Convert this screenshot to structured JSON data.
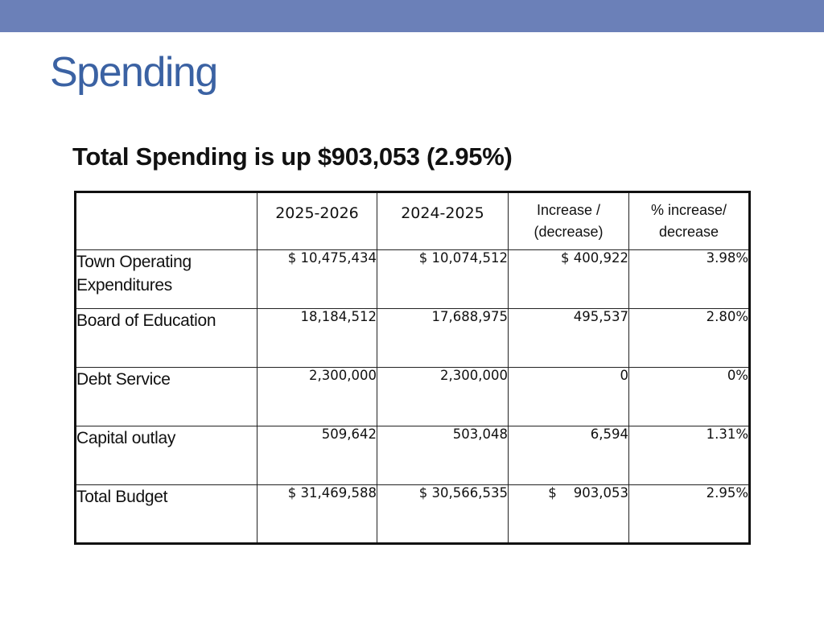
{
  "slide": {
    "title": "Spending",
    "subtitle": "Total Spending is up $903,053 (2.95%)",
    "accent_color": "#6b80b8",
    "title_color": "#3b62a3"
  },
  "table": {
    "headers": {
      "label": "",
      "year1": "2025-2026",
      "year2": "2024-2025",
      "increase_line1": "Increase /",
      "increase_line2": "(decrease)",
      "pct_line1": "% increase/",
      "pct_line2": "decrease"
    },
    "rows": [
      {
        "label_line1": "Town Operating",
        "label_line2": "Expenditures",
        "year1": "$ 10,475,434",
        "year2": "$ 10,074,512",
        "increase": "$ 400,922",
        "pct": "3.98%"
      },
      {
        "label_line1": "Board of Education",
        "label_line2": "",
        "year1": "18,184,512",
        "year2": "17,688,975",
        "increase": "495,537",
        "pct": "2.80%"
      },
      {
        "label_line1": "Debt Service",
        "label_line2": "",
        "year1": "2,300,000",
        "year2": "2,300,000",
        "increase": "0",
        "pct": "0%"
      },
      {
        "label_line1": "Capital outlay",
        "label_line2": "",
        "year1": "509,642",
        "year2": "503,048",
        "increase": "6,594",
        "pct": "1.31%"
      },
      {
        "label_line1": "Total Budget",
        "label_line2": "",
        "year1": "$ 31,469,588",
        "year2": "$ 30,566,535",
        "increase": "$    903,053",
        "pct": "2.95%"
      }
    ]
  }
}
